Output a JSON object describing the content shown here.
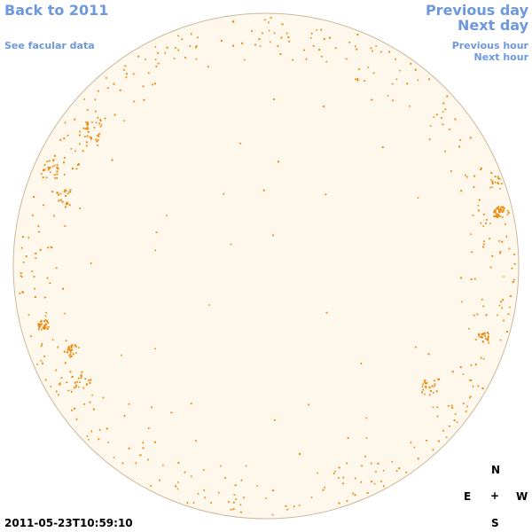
{
  "nav": {
    "back_label": "Back to 2011",
    "facular_label": "See facular data",
    "prev_day_label": "Previous day",
    "next_day_label": "Next day",
    "prev_hour_label": "Previous hour",
    "next_hour_label": "Next hour"
  },
  "compass": {
    "north": "N",
    "east": "E",
    "center": "+",
    "west": "W",
    "south": "S"
  },
  "timestamp": "2011-05-23T10:59:10",
  "colors": {
    "link": "#6e98de",
    "disk_fill": "#fef8ec",
    "disk_edge": "#c9b99a",
    "facula": "#e8890c"
  }
}
